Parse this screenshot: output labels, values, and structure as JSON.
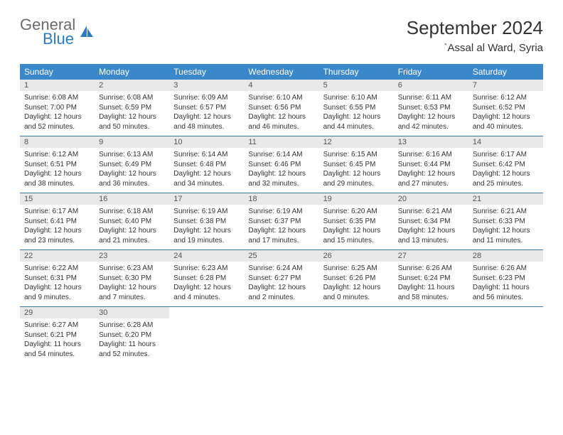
{
  "brand": {
    "text_general": "General",
    "text_blue": "Blue",
    "icon_color": "#2c7bc0"
  },
  "header": {
    "month_title": "September 2024",
    "location": "`Assal al Ward, Syria"
  },
  "colors": {
    "header_bar": "#3a87c9",
    "week_border": "#3a7bb0",
    "daynum_bg": "#e8e8e8",
    "text": "#333333",
    "logo_gray": "#6a6a6a",
    "logo_blue": "#2c7bc0",
    "background": "#ffffff"
  },
  "day_names": [
    "Sunday",
    "Monday",
    "Tuesday",
    "Wednesday",
    "Thursday",
    "Friday",
    "Saturday"
  ],
  "days": [
    {
      "n": "1",
      "sr": "6:08 AM",
      "ss": "7:00 PM",
      "dh": "12",
      "dm": "52"
    },
    {
      "n": "2",
      "sr": "6:08 AM",
      "ss": "6:59 PM",
      "dh": "12",
      "dm": "50"
    },
    {
      "n": "3",
      "sr": "6:09 AM",
      "ss": "6:57 PM",
      "dh": "12",
      "dm": "48"
    },
    {
      "n": "4",
      "sr": "6:10 AM",
      "ss": "6:56 PM",
      "dh": "12",
      "dm": "46"
    },
    {
      "n": "5",
      "sr": "6:10 AM",
      "ss": "6:55 PM",
      "dh": "12",
      "dm": "44"
    },
    {
      "n": "6",
      "sr": "6:11 AM",
      "ss": "6:53 PM",
      "dh": "12",
      "dm": "42"
    },
    {
      "n": "7",
      "sr": "6:12 AM",
      "ss": "6:52 PM",
      "dh": "12",
      "dm": "40"
    },
    {
      "n": "8",
      "sr": "6:12 AM",
      "ss": "6:51 PM",
      "dh": "12",
      "dm": "38"
    },
    {
      "n": "9",
      "sr": "6:13 AM",
      "ss": "6:49 PM",
      "dh": "12",
      "dm": "36"
    },
    {
      "n": "10",
      "sr": "6:14 AM",
      "ss": "6:48 PM",
      "dh": "12",
      "dm": "34"
    },
    {
      "n": "11",
      "sr": "6:14 AM",
      "ss": "6:46 PM",
      "dh": "12",
      "dm": "32"
    },
    {
      "n": "12",
      "sr": "6:15 AM",
      "ss": "6:45 PM",
      "dh": "12",
      "dm": "29"
    },
    {
      "n": "13",
      "sr": "6:16 AM",
      "ss": "6:44 PM",
      "dh": "12",
      "dm": "27"
    },
    {
      "n": "14",
      "sr": "6:17 AM",
      "ss": "6:42 PM",
      "dh": "12",
      "dm": "25"
    },
    {
      "n": "15",
      "sr": "6:17 AM",
      "ss": "6:41 PM",
      "dh": "12",
      "dm": "23"
    },
    {
      "n": "16",
      "sr": "6:18 AM",
      "ss": "6:40 PM",
      "dh": "12",
      "dm": "21"
    },
    {
      "n": "17",
      "sr": "6:19 AM",
      "ss": "6:38 PM",
      "dh": "12",
      "dm": "19"
    },
    {
      "n": "18",
      "sr": "6:19 AM",
      "ss": "6:37 PM",
      "dh": "12",
      "dm": "17"
    },
    {
      "n": "19",
      "sr": "6:20 AM",
      "ss": "6:35 PM",
      "dh": "12",
      "dm": "15"
    },
    {
      "n": "20",
      "sr": "6:21 AM",
      "ss": "6:34 PM",
      "dh": "12",
      "dm": "13"
    },
    {
      "n": "21",
      "sr": "6:21 AM",
      "ss": "6:33 PM",
      "dh": "12",
      "dm": "11"
    },
    {
      "n": "22",
      "sr": "6:22 AM",
      "ss": "6:31 PM",
      "dh": "12",
      "dm": "9"
    },
    {
      "n": "23",
      "sr": "6:23 AM",
      "ss": "6:30 PM",
      "dh": "12",
      "dm": "7"
    },
    {
      "n": "24",
      "sr": "6:23 AM",
      "ss": "6:28 PM",
      "dh": "12",
      "dm": "4"
    },
    {
      "n": "25",
      "sr": "6:24 AM",
      "ss": "6:27 PM",
      "dh": "12",
      "dm": "2"
    },
    {
      "n": "26",
      "sr": "6:25 AM",
      "ss": "6:26 PM",
      "dh": "12",
      "dm": "0"
    },
    {
      "n": "27",
      "sr": "6:26 AM",
      "ss": "6:24 PM",
      "dh": "11",
      "dm": "58"
    },
    {
      "n": "28",
      "sr": "6:26 AM",
      "ss": "6:23 PM",
      "dh": "11",
      "dm": "56"
    },
    {
      "n": "29",
      "sr": "6:27 AM",
      "ss": "6:21 PM",
      "dh": "11",
      "dm": "54"
    },
    {
      "n": "30",
      "sr": "6:28 AM",
      "ss": "6:20 PM",
      "dh": "11",
      "dm": "52"
    }
  ],
  "labels": {
    "sunrise_prefix": "Sunrise: ",
    "sunset_prefix": "Sunset: ",
    "daylight_prefix": "Daylight: ",
    "hours_word": " hours",
    "and_word": "and ",
    "minutes_word": " minutes."
  },
  "layout": {
    "first_day_column": 0,
    "total_days": 30,
    "columns": 7
  }
}
